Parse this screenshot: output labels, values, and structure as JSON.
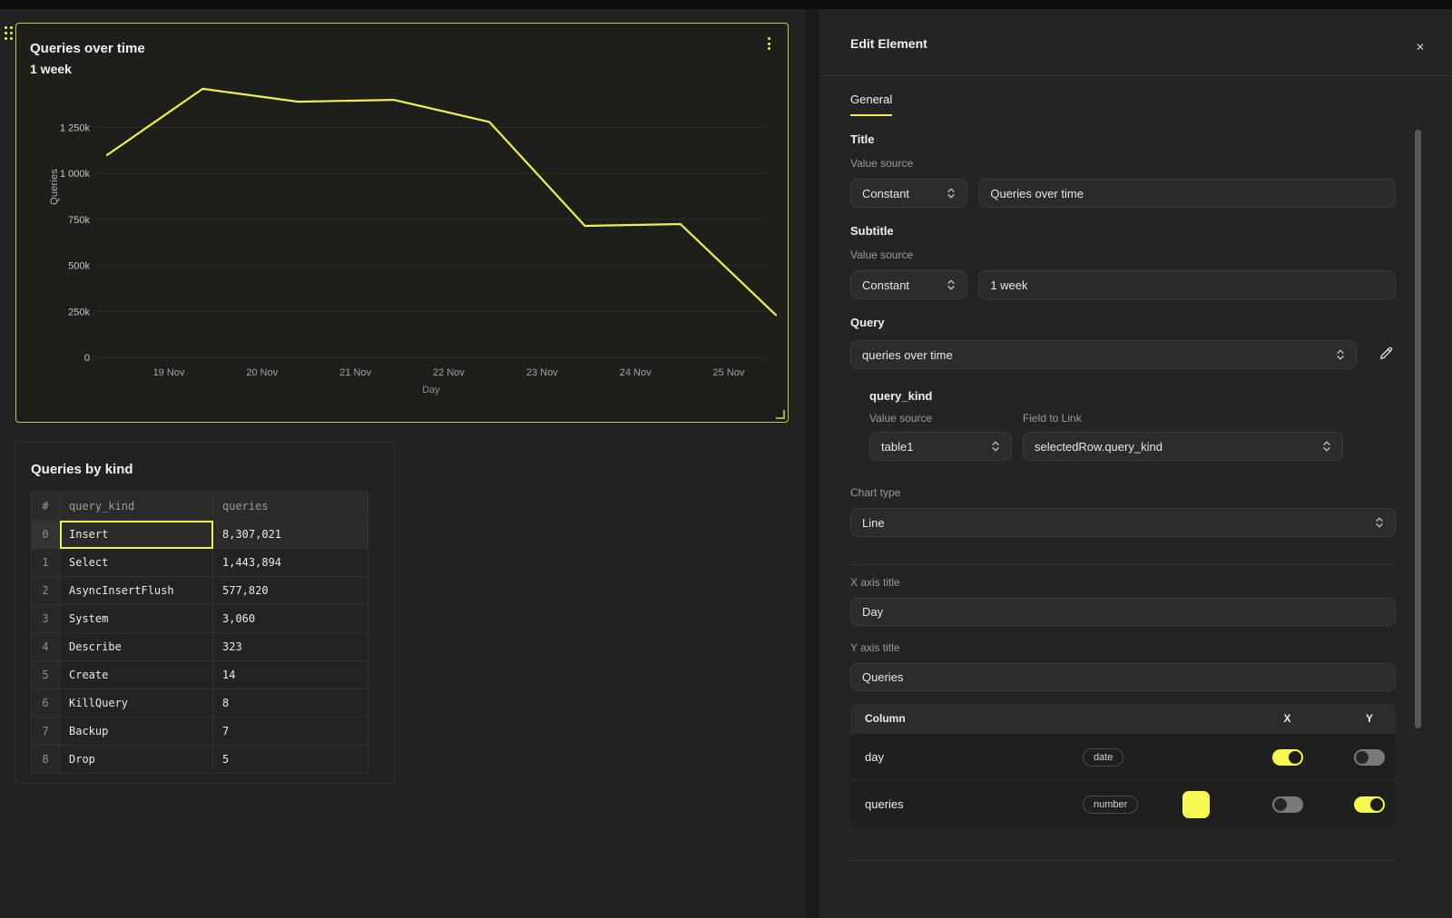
{
  "accent": "#f2f44e",
  "chart_data": [
    {
      "type": "line",
      "title": "Queries over time",
      "subtitle": "1 week",
      "xlabel": "Day",
      "ylabel": "Queries",
      "x_ticks": [
        "19 Nov",
        "20 Nov",
        "21 Nov",
        "22 Nov",
        "23 Nov",
        "24 Nov",
        "25 Nov"
      ],
      "y_ticks": [
        "0",
        "250k",
        "500k",
        "750k",
        "1 000k",
        "1 250k"
      ],
      "ylim": [
        0,
        1520000
      ],
      "grid": true,
      "legend": false,
      "series": [
        {
          "name": "queries",
          "color": "#eef04e",
          "values": [
            1100000,
            1460000,
            1390000,
            1400000,
            1280000,
            715000,
            725000,
            230000
          ]
        }
      ]
    },
    {
      "type": "table",
      "title": "Queries by kind",
      "columns": [
        "#",
        "query_kind",
        "queries"
      ],
      "rows": [
        [
          "0",
          "Insert",
          "8,307,021"
        ],
        [
          "1",
          "Select",
          "1,443,894"
        ],
        [
          "2",
          "AsyncInsertFlush",
          "577,820"
        ],
        [
          "3",
          "System",
          "3,060"
        ],
        [
          "4",
          "Describe",
          "323"
        ],
        [
          "5",
          "Create",
          "14"
        ],
        [
          "6",
          "KillQuery",
          "8"
        ],
        [
          "7",
          "Backup",
          "7"
        ],
        [
          "8",
          "Drop",
          "5"
        ]
      ],
      "selected": {
        "row": 0,
        "column": "query_kind",
        "value": "Insert"
      }
    }
  ],
  "panel": {
    "title": "Edit Element",
    "close_label": "✕",
    "tab": "General",
    "title_section": {
      "heading": "Title",
      "value_source_label": "Value source",
      "source": "Constant",
      "value": "Queries over time"
    },
    "subtitle_section": {
      "heading": "Subtitle",
      "value_source_label": "Value source",
      "source": "Constant",
      "value": "1 week"
    },
    "query_section": {
      "heading": "Query",
      "value": "queries over time"
    },
    "query_kind": {
      "heading": "query_kind",
      "value_source_label": "Value source",
      "field_label": "Field to Link",
      "source": "table1",
      "field": "selectedRow.query_kind"
    },
    "chart_type": {
      "label": "Chart type",
      "value": "Line"
    },
    "x_axis": {
      "label": "X axis title",
      "value": "Day"
    },
    "y_axis": {
      "label": "Y axis title",
      "value": "Queries"
    },
    "columns_table": {
      "column_header": "Column",
      "x_header": "X",
      "y_header": "Y",
      "rows": [
        {
          "name": "day",
          "badge": "date",
          "x_on": true,
          "y_on": false
        },
        {
          "name": "queries",
          "badge": "number",
          "swatch": "#f7f955",
          "x_on": false,
          "y_on": true
        }
      ]
    }
  }
}
